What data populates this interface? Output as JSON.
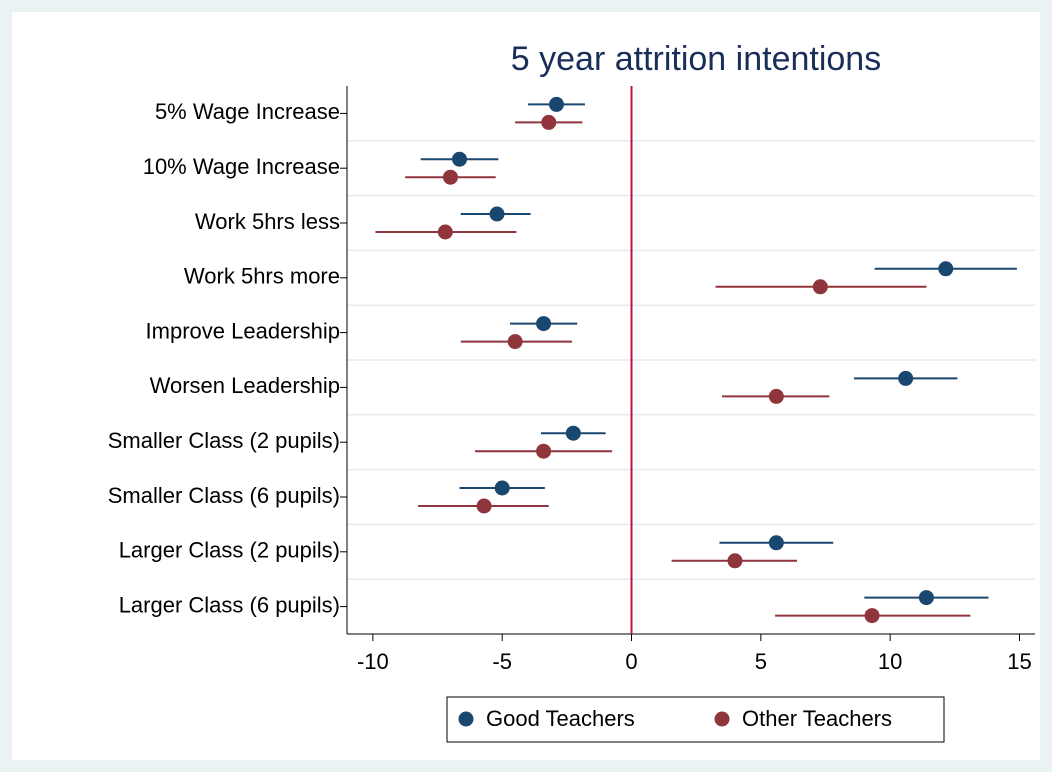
{
  "chart_data": {
    "type": "coefplot",
    "title": "5 year attrition intentions",
    "categories": [
      "5% Wage Increase",
      "10% Wage Increase",
      "Work 5hrs less",
      "Work 5hrs more",
      "Improve Leadership",
      "Worsen Leadership",
      "Smaller Class (2 pupils)",
      "Smaller Class (6 pupils)",
      "Larger Class (2 pupils)",
      "Larger Class (6 pupils)"
    ],
    "series": [
      {
        "name": "Good Teachers",
        "color": "#1a476f",
        "values": [
          -2.9,
          -6.65,
          -5.2,
          12.15,
          -3.4,
          10.6,
          -2.25,
          -5.0,
          5.6,
          11.4
        ],
        "ci_low": [
          -4.0,
          -8.15,
          -6.6,
          9.4,
          -4.7,
          8.6,
          -3.5,
          -6.65,
          3.4,
          9.0
        ],
        "ci_high": [
          -1.8,
          -5.15,
          -3.9,
          14.9,
          -2.1,
          12.6,
          -1.0,
          -3.35,
          7.8,
          13.8
        ]
      },
      {
        "name": "Other Teachers",
        "color": "#90353b",
        "values": [
          -3.2,
          -7.0,
          -7.2,
          7.3,
          -4.5,
          5.6,
          -3.4,
          -5.7,
          4.0,
          9.3
        ],
        "ci_low": [
          -4.5,
          -8.75,
          -9.9,
          3.25,
          -6.6,
          3.5,
          -6.05,
          -8.25,
          1.55,
          5.55
        ],
        "ci_high": [
          -1.9,
          -5.25,
          -4.45,
          11.4,
          -2.3,
          7.65,
          -0.75,
          -3.2,
          6.4,
          13.1
        ]
      }
    ],
    "xlim": [
      -11,
      15.6
    ],
    "xticks": [
      -10,
      -5,
      0,
      5,
      10,
      15
    ],
    "reference_line": {
      "value": 0,
      "color": "#c0143c"
    },
    "legend": "bottom"
  }
}
